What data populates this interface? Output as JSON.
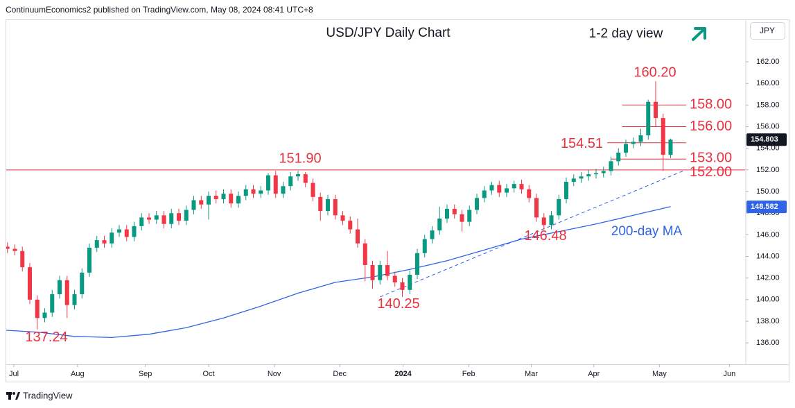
{
  "chart_data": {
    "type": "candlestick",
    "header": "ContinuumEconomics2 published on TradingView.com, May 08, 2024 08:41 UTC+8",
    "title": "USD/JPY Daily Chart",
    "subtitle": "1-2 day view",
    "currency": "JPY",
    "footer": "TradingView",
    "up_color": "#089981",
    "down_color": "#f23645",
    "xlim": [
      0,
      100
    ],
    "ylim": [
      134.02,
      165.92
    ],
    "xticks": [
      {
        "value": 1.86,
        "label": "Jul"
      },
      {
        "value": 10.4,
        "label": "Aug"
      },
      {
        "value": 19.5,
        "label": "Sep"
      },
      {
        "value": 28,
        "label": "Oct"
      },
      {
        "value": 36.8,
        "label": "Nov"
      },
      {
        "value": 45.6,
        "label": "Dec"
      },
      {
        "value": 54.1,
        "label": "2024"
      },
      {
        "value": 62.9,
        "label": "Feb"
      },
      {
        "value": 71.3,
        "label": "Mar"
      },
      {
        "value": 79.7,
        "label": "Apr"
      },
      {
        "value": 88.5,
        "label": "May"
      },
      {
        "value": 97.9,
        "label": "Jun"
      }
    ],
    "yticks": [
      {
        "value": 136,
        "label": "136.00"
      },
      {
        "value": 138,
        "label": "138.00"
      },
      {
        "value": 140,
        "label": "140.00"
      },
      {
        "value": 142,
        "label": "142.00"
      },
      {
        "value": 144,
        "label": "144.00"
      },
      {
        "value": 146,
        "label": "146.00"
      },
      {
        "value": 148,
        "label": "148.00"
      },
      {
        "value": 150,
        "label": "150.00"
      },
      {
        "value": 152,
        "label": "152.00"
      },
      {
        "value": 154,
        "label": "154.00"
      },
      {
        "value": 156,
        "label": "156.00"
      },
      {
        "value": 158,
        "label": "158.00"
      },
      {
        "value": 160,
        "label": "160.00"
      },
      {
        "value": 162,
        "label": "162.00"
      }
    ],
    "x": [
      1,
      2,
      3,
      4,
      5,
      6,
      7,
      8,
      9,
      10,
      11,
      12,
      13,
      14,
      15,
      16,
      17,
      18,
      19,
      20,
      21,
      22,
      23,
      24,
      25,
      26,
      27,
      28,
      29,
      30,
      31,
      32,
      33,
      34,
      35,
      36,
      37,
      38,
      39,
      40,
      41,
      42,
      43,
      44,
      45,
      46,
      47,
      48,
      49,
      50,
      51,
      52,
      53,
      54,
      55,
      56,
      57,
      58,
      59,
      60,
      61,
      62,
      63,
      64,
      65,
      66,
      67,
      68,
      69,
      70,
      71,
      72,
      73,
      74,
      75,
      76,
      77,
      78,
      79,
      80,
      81,
      82,
      83,
      84,
      85,
      86,
      87,
      88,
      89,
      90
    ],
    "open": [
      144.9,
      144.7,
      144.5,
      143,
      140,
      138.3,
      138.8,
      140.5,
      141.8,
      139.5,
      140.5,
      142.5,
      144.8,
      145.5,
      145.2,
      146.2,
      146.5,
      145.8,
      146.8,
      147.6,
      147.4,
      147.8,
      147,
      148,
      147.3,
      148.3,
      149.2,
      148.8,
      149.6,
      149.3,
      149.8,
      148.9,
      149.6,
      150.2,
      149.8,
      150.1,
      151.5,
      149.8,
      150.5,
      151.4,
      151.6,
      150.8,
      149.5,
      148.2,
      149.3,
      147.8,
      147.3,
      146.5,
      145.2,
      143.2,
      141.8,
      143.2,
      142.2,
      141.6,
      140.9,
      142.3,
      144.3,
      145.6,
      146.4,
      147.5,
      148.4,
      147.9,
      147.2,
      148.3,
      149.4,
      150.1,
      150.6,
      149.9,
      150.3,
      150.7,
      150.2,
      149.4,
      147.6,
      146.9,
      147.8,
      149.3,
      150.9,
      151.2,
      151.4,
      151.6,
      151.7,
      151.9,
      152.8,
      153.6,
      154.4,
      154.6,
      155.2,
      158.3,
      156.8,
      153.4
    ],
    "high": [
      145.3,
      145.1,
      144.9,
      143.4,
      140.4,
      139.2,
      140.9,
      142.2,
      142.2,
      140.9,
      142.9,
      145.2,
      145.9,
      145.9,
      146.6,
      146.9,
      146.9,
      147.2,
      148,
      148,
      148.2,
      148.2,
      148.4,
      148.4,
      148.7,
      149.6,
      149.6,
      150,
      150.1,
      150.2,
      150.2,
      150,
      150.6,
      150.6,
      150.5,
      151.7,
      151.9,
      150.9,
      151.8,
      151.9,
      151.8,
      151.2,
      149.9,
      149.7,
      149.7,
      148.2,
      147.7,
      147.5,
      145.6,
      143.6,
      143.6,
      144.5,
      142.6,
      142,
      142.7,
      144.7,
      146,
      146.8,
      148.6,
      148.8,
      148.8,
      148.3,
      148.7,
      149.8,
      150.5,
      150.9,
      151,
      150.7,
      151,
      151.1,
      150.6,
      149.8,
      148,
      148.2,
      149.7,
      151.3,
      151.6,
      151.8,
      152,
      152.1,
      152.3,
      153.2,
      154,
      154.8,
      155,
      155.8,
      158.5,
      160.2,
      157.2,
      154.9
    ],
    "low": [
      144.3,
      144.1,
      142.6,
      139.6,
      137.24,
      137.9,
      138.4,
      140.1,
      138.3,
      139.1,
      140.1,
      142.1,
      144.4,
      144.8,
      144.8,
      145.8,
      145.4,
      145.4,
      146.4,
      147,
      147,
      146.6,
      146.6,
      146.9,
      146.9,
      147.9,
      148.4,
      147.4,
      148.9,
      148.9,
      148.5,
      148.5,
      149.2,
      149.4,
      149.4,
      149.7,
      149.4,
      149.4,
      150.1,
      151,
      150.4,
      149.1,
      147.3,
      147.8,
      147.4,
      146.9,
      146.1,
      144.8,
      141.7,
      141,
      141.4,
      141.8,
      141.2,
      140.25,
      140.5,
      141.9,
      143.9,
      145.2,
      146,
      147.1,
      147.5,
      146.3,
      146.8,
      147.9,
      149,
      149.7,
      149.5,
      149.5,
      149.9,
      149.8,
      149,
      147.2,
      146.48,
      146.5,
      147.4,
      148.9,
      150.5,
      150.8,
      151,
      151.2,
      151.3,
      151.5,
      152.4,
      153.2,
      154,
      154.2,
      154.8,
      156,
      151.9,
      153.1
    ],
    "close": [
      144.7,
      144.5,
      143,
      140,
      138.3,
      138.8,
      140.5,
      141.8,
      139.5,
      140.5,
      142.5,
      144.8,
      145.5,
      145.2,
      146.2,
      146.5,
      145.8,
      146.8,
      147.6,
      147.4,
      147.8,
      147,
      148,
      147.3,
      148.3,
      149.2,
      148.8,
      149.6,
      149.3,
      149.8,
      148.9,
      149.6,
      150.2,
      149.8,
      150.1,
      151.5,
      149.8,
      150.5,
      151.4,
      151.6,
      150.8,
      149.5,
      148.2,
      149.3,
      147.8,
      147.3,
      146.5,
      145.2,
      143.2,
      141.8,
      143.2,
      142.2,
      141.6,
      140.9,
      142.3,
      144.3,
      145.6,
      146.4,
      147.5,
      148.4,
      147.9,
      147.2,
      148.3,
      149.4,
      150.1,
      150.6,
      149.9,
      150.3,
      150.7,
      150.2,
      149.4,
      147.6,
      146.9,
      147.8,
      149.3,
      150.9,
      151.2,
      151.4,
      151.6,
      151.7,
      151.9,
      152.8,
      153.6,
      154.4,
      154.6,
      155.2,
      158.3,
      156.8,
      153.4,
      154.8
    ],
    "moving_average": {
      "name": "200-day MA",
      "color": "#2f63e8",
      "x": [
        0,
        5,
        10,
        15,
        20,
        25,
        30,
        35,
        40,
        45,
        50,
        55,
        60,
        65,
        70,
        75,
        80,
        85,
        90
      ],
      "values": [
        137.2,
        137.0,
        136.6,
        136.5,
        136.8,
        137.4,
        138.3,
        139.4,
        140.6,
        141.6,
        142.1,
        142.8,
        143.6,
        144.6,
        145.6,
        146.3,
        147.0,
        147.8,
        148.6
      ]
    },
    "trendline": {
      "color": "#2f63e8",
      "x": [
        51,
        92
      ],
      "values": [
        140.25,
        152
      ]
    },
    "levels": [
      {
        "value": 160.2,
        "label": "160.20"
      },
      {
        "value": 158,
        "label": "158.00",
        "line_start": 83.5
      },
      {
        "value": 156,
        "label": "156.00",
        "line_start": 83.5
      },
      {
        "value": 154.51,
        "label": "154.51",
        "line_start": 81.5
      },
      {
        "value": 153,
        "label": "153.00",
        "line_start": 82
      },
      {
        "value": 152,
        "label": "152.00",
        "line_start": 0
      },
      {
        "value": 151.9,
        "label": "151.90"
      },
      {
        "value": 146.48,
        "label": "146.48"
      },
      {
        "value": 140.25,
        "label": "140.25"
      },
      {
        "value": 137.24,
        "label": "137.24"
      }
    ],
    "price_labels": [
      {
        "value": 154.803,
        "label": "154.803",
        "color": "#131722"
      },
      {
        "value": 148.582,
        "label": "148.582",
        "color": "#2f63e8"
      }
    ]
  }
}
